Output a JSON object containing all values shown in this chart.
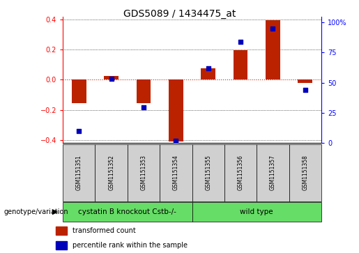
{
  "title": "GDS5089 / 1434475_at",
  "samples": [
    "GSM1151351",
    "GSM1151352",
    "GSM1151353",
    "GSM1151354",
    "GSM1151355",
    "GSM1151356",
    "GSM1151357",
    "GSM1151358"
  ],
  "red_values": [
    -0.155,
    0.025,
    -0.155,
    -0.41,
    0.075,
    0.195,
    0.395,
    -0.02
  ],
  "blue_percentile": [
    10,
    53.5,
    29.5,
    2.0,
    62,
    84,
    95,
    44
  ],
  "ylim_left": [
    -0.42,
    0.42
  ],
  "ylim_right": [
    0,
    105
  ],
  "yticks_left": [
    -0.4,
    -0.2,
    0.0,
    0.2,
    0.4
  ],
  "yticks_right": [
    0,
    25,
    50,
    75,
    100
  ],
  "ytick_labels_right": [
    "0",
    "25",
    "50",
    "75",
    "100%"
  ],
  "group1_label": "cystatin B knockout Cstb-/-",
  "group2_label": "wild type",
  "group1_indices": [
    0,
    1,
    2,
    3
  ],
  "group2_indices": [
    4,
    5,
    6,
    7
  ],
  "group_color": "#66dd66",
  "bar_color": "#bb2200",
  "dot_color": "#0000bb",
  "zero_line_color": "#cc2200",
  "bar_width": 0.45,
  "legend_red_label": "transformed count",
  "legend_blue_label": "percentile rank within the sample",
  "genotype_label": "genotype/variation",
  "title_fontsize": 10,
  "tick_fontsize": 7,
  "sample_fontsize": 5.5,
  "group_fontsize": 7.5,
  "legend_fontsize": 7,
  "genotype_fontsize": 7
}
